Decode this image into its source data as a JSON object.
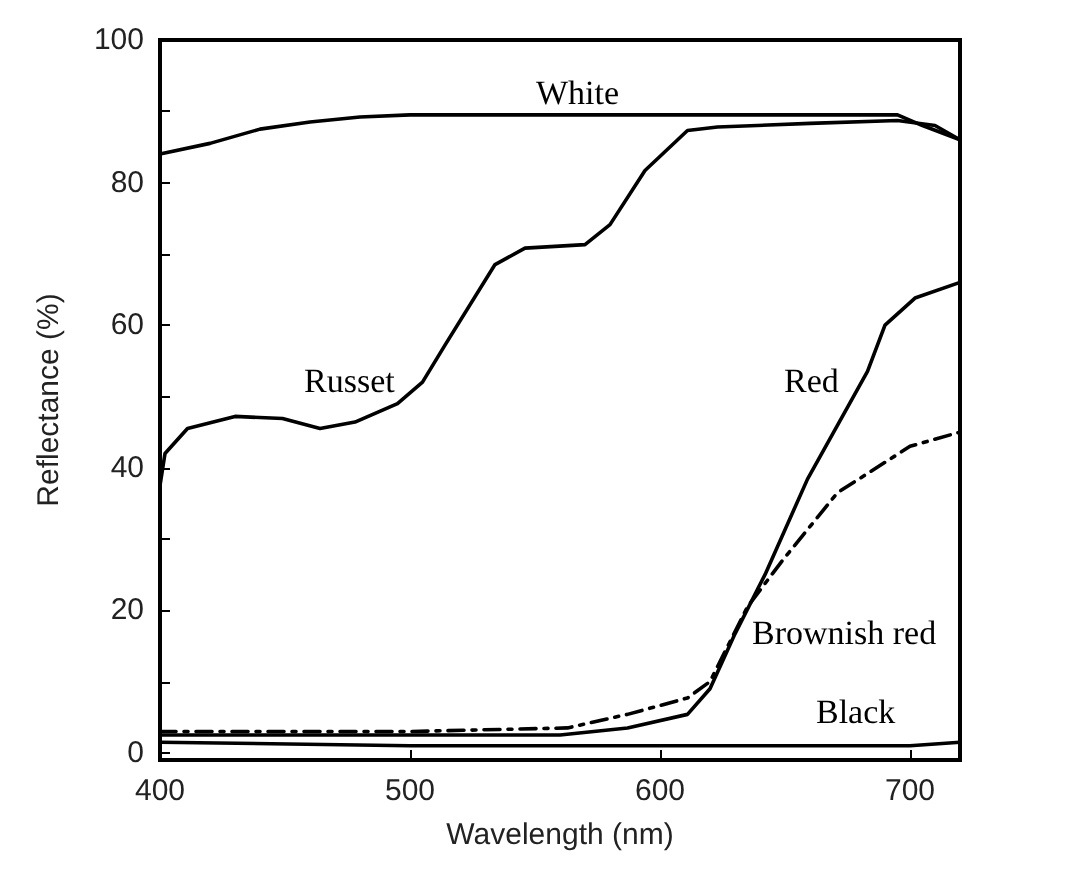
{
  "chart_data": {
    "type": "line",
    "xlabel": "Wavelength (nm)",
    "ylabel": "Reflectance (%)",
    "xlim": [
      400,
      720
    ],
    "xticks": [
      400,
      500,
      600,
      700
    ],
    "ylim": [
      -1,
      100
    ],
    "yticks": [
      0,
      {
        "value": 10,
        "label": null
      },
      20,
      {
        "value": 30,
        "label": null
      },
      40,
      {
        "value": 50,
        "label": null
      },
      60,
      {
        "value": 70,
        "label": null
      },
      80,
      {
        "value": 90,
        "label": null
      },
      100
    ],
    "grid": false,
    "marker": "none",
    "series": [
      {
        "name": "White",
        "color": "#000000",
        "line_style": "solid",
        "x": [
          400,
          420,
          440,
          460,
          480,
          500,
          550,
          600,
          650,
          695,
          705,
          720
        ],
        "values": [
          84,
          85.5,
          87.5,
          88.5,
          89.2,
          89.5,
          89.5,
          89.5,
          89.5,
          89.5,
          88,
          86
        ]
      },
      {
        "name": "Russet",
        "color": "#000000",
        "line_style": "solid",
        "x": [
          400,
          402,
          411,
          430,
          449,
          464,
          478,
          495,
          505,
          514,
          534,
          546,
          570,
          580,
          594,
          611,
          623,
          660,
          695,
          710,
          720
        ],
        "values": [
          37.5,
          42,
          45.5,
          47.2,
          46.9,
          45.5,
          46.4,
          49,
          52,
          57.2,
          68.5,
          70.8,
          71.3,
          74.1,
          81.7,
          87.3,
          87.8,
          88.3,
          88.7,
          88,
          86
        ]
      },
      {
        "name": "Red",
        "color": "#000000",
        "line_style": "solid",
        "x": [
          400,
          500,
          560,
          587,
          611,
          620,
          630,
          642,
          659,
          683,
          690,
          702,
          720
        ],
        "values": [
          2.5,
          2.5,
          2.5,
          3.5,
          5.4,
          9,
          16.7,
          25,
          38.4,
          53.5,
          60,
          63.8,
          66
        ]
      },
      {
        "name": "Brownish red",
        "color": "#000000",
        "line_style": "dashed",
        "x": [
          400,
          500,
          563,
          587,
          611,
          620,
          635,
          649,
          671,
          700,
          720
        ],
        "values": [
          3,
          3,
          3.5,
          5.4,
          7.7,
          10,
          20.5,
          27,
          36.5,
          43,
          45
        ]
      },
      {
        "name": "Black",
        "color": "#000000",
        "line_style": "solid",
        "x": [
          400,
          500,
          600,
          700,
          720
        ],
        "values": [
          1.5,
          1,
          1,
          1,
          1.5
        ]
      }
    ]
  }
}
